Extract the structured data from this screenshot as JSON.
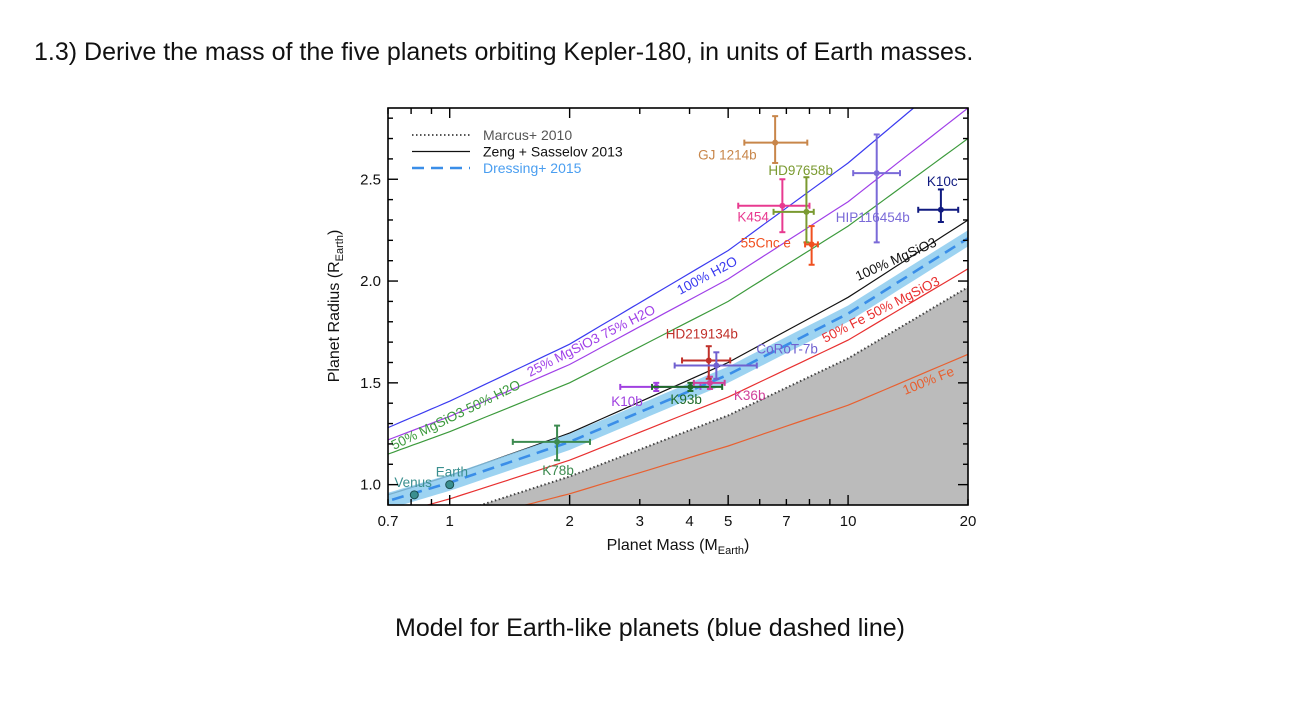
{
  "slide": {
    "title": "1.3) Derive the mass of the five planets orbiting Kepler-180, in units of Earth masses.",
    "caption": "Model for Earth-like planets (blue dashed line)"
  },
  "chart_data": {
    "type": "scatter",
    "xlabel": "Planet Mass (M",
    "xlabel_sub": "Earth",
    "ylabel": "Planet Radius (R",
    "ylabel_sub": "Earth",
    "xscale": "log",
    "xlim": [
      0.7,
      20
    ],
    "ylim": [
      0.9,
      2.85
    ],
    "xticks": [
      "0.7",
      "1",
      "2",
      "3",
      "4",
      "5",
      "7",
      "10",
      "20"
    ],
    "yticks": [
      "1.0",
      "1.5",
      "2.0",
      "2.5"
    ],
    "grid": false,
    "legend_position": "top-left",
    "legend": [
      {
        "label": "Marcus+ 2010",
        "style": "dotted",
        "color": "#555555"
      },
      {
        "label": "Zeng + Sasselov 2013",
        "style": "solid",
        "color": "#111111"
      },
      {
        "label": "Dressing+ 2015",
        "style": "dashed",
        "color": "#3a8ee8"
      }
    ],
    "curves": [
      {
        "label": "100% H2O",
        "color": "#3b3bf0",
        "points": [
          [
            0.7,
            1.28
          ],
          [
            1,
            1.41
          ],
          [
            2,
            1.69
          ],
          [
            5,
            2.15
          ],
          [
            10,
            2.58
          ],
          [
            14.6,
            2.85
          ]
        ]
      },
      {
        "label": "25% MgSiO3 75% H2O",
        "color": "#a040e8",
        "points": [
          [
            0.7,
            1.22
          ],
          [
            1,
            1.335
          ],
          [
            2,
            1.59
          ],
          [
            5,
            2.01
          ],
          [
            10,
            2.39
          ],
          [
            20,
            2.85
          ]
        ]
      },
      {
        "label": "50% MgSiO3 50% H2O",
        "color": "#3c9a3c",
        "points": [
          [
            0.7,
            1.15
          ],
          [
            1,
            1.26
          ],
          [
            2,
            1.5
          ],
          [
            5,
            1.9
          ],
          [
            10,
            2.27
          ],
          [
            20,
            2.7
          ]
        ]
      },
      {
        "label": "100% MgSiO3",
        "color": "#111111",
        "points": [
          [
            0.7,
            0.95
          ],
          [
            1,
            1.044
          ],
          [
            2,
            1.253
          ],
          [
            5,
            1.6
          ],
          [
            10,
            1.92
          ],
          [
            20,
            2.3
          ]
        ]
      },
      {
        "label": "",
        "color": "#3a8ee8",
        "dashed": true,
        "band": 0.04,
        "points": [
          [
            0.7,
            0.92
          ],
          [
            1,
            1.01
          ],
          [
            2,
            1.21
          ],
          [
            5,
            1.54
          ],
          [
            10,
            1.84
          ],
          [
            20,
            2.21
          ]
        ]
      },
      {
        "label": "50% Fe 50% MgSiO3",
        "color": "#e83030",
        "points": [
          [
            0.88,
            0.9
          ],
          [
            1,
            0.93
          ],
          [
            2,
            1.12
          ],
          [
            5,
            1.43
          ],
          [
            10,
            1.71
          ],
          [
            20,
            2.06
          ]
        ]
      },
      {
        "label": "",
        "color": "#444444",
        "dotted": true,
        "fill_below": "#bbbbbb",
        "points": [
          [
            1.2,
            0.9
          ],
          [
            2,
            1.04
          ],
          [
            5,
            1.34
          ],
          [
            10,
            1.62
          ],
          [
            20,
            1.97
          ]
        ]
      },
      {
        "label": "100% Fe",
        "color": "#e86030",
        "points": [
          [
            1.55,
            0.9
          ],
          [
            2,
            0.955
          ],
          [
            5,
            1.19
          ],
          [
            10,
            1.39
          ],
          [
            20,
            1.64
          ]
        ]
      }
    ],
    "points": [
      {
        "name": "Venus",
        "mass": 0.815,
        "radius": 0.95,
        "color": "#3a8f8f"
      },
      {
        "name": "Earth",
        "mass": 1.0,
        "radius": 1.0,
        "color": "#3a8f8f"
      },
      {
        "name": "K78b",
        "mass": 1.86,
        "mass_err": [
          1.44,
          2.25
        ],
        "radius": 1.21,
        "radius_err": [
          1.12,
          1.29
        ],
        "color": "#3c8a4f"
      },
      {
        "name": "K10b",
        "mass": 3.3,
        "mass_err": [
          2.68,
          4.26
        ],
        "radius": 1.48,
        "radius_err": [
          1.46,
          1.5
        ],
        "color": "#a040e0"
      },
      {
        "name": "K93b",
        "mass": 4.02,
        "mass_err": [
          3.22,
          4.83
        ],
        "radius": 1.48,
        "radius_err": [
          1.46,
          1.5
        ],
        "color": "#1f6b2a"
      },
      {
        "name": "K36b",
        "mass": 4.5,
        "mass_err": [
          4.1,
          4.9
        ],
        "radius": 1.5,
        "radius_err": [
          1.47,
          1.53
        ],
        "color": "#d0409a"
      },
      {
        "name": "HD219134b",
        "mass": 4.47,
        "mass_err": [
          3.83,
          5.06
        ],
        "radius": 1.61,
        "radius_err": [
          1.52,
          1.68
        ],
        "color": "#c0302a"
      },
      {
        "name": "CoRoT-7b",
        "mass": 4.67,
        "mass_err": [
          3.67,
          5.9
        ],
        "radius": 1.585,
        "radius_err": [
          1.52,
          1.65
        ],
        "color": "#7060d0"
      },
      {
        "name": "GJ 1214b",
        "mass": 6.56,
        "mass_err": [
          5.49,
          7.9
        ],
        "radius": 2.68,
        "radius_err": [
          2.58,
          2.81
        ],
        "color": "#c8864a"
      },
      {
        "name": "K454",
        "mass": 6.84,
        "mass_err": [
          5.3,
          8.0
        ],
        "radius": 2.37,
        "radius_err": [
          2.24,
          2.5
        ],
        "color": "#e83a90"
      },
      {
        "name": "HD97658b",
        "mass": 7.86,
        "mass_err": [
          6.5,
          8.2
        ],
        "radius": 2.34,
        "radius_err": [
          2.19,
          2.51
        ],
        "color": "#7a9a30"
      },
      {
        "name": "55Cnc e",
        "mass": 8.1,
        "mass_err": [
          7.8,
          8.4
        ],
        "radius": 2.18,
        "radius_err": [
          2.08,
          2.27
        ],
        "color": "#f05020"
      },
      {
        "name": "HIP116454b",
        "mass": 11.8,
        "mass_err": [
          10.3,
          13.5
        ],
        "radius": 2.53,
        "radius_err": [
          2.19,
          2.72
        ],
        "color": "#7a6ad8"
      },
      {
        "name": "K10c",
        "mass": 17.1,
        "mass_err": [
          15.0,
          18.9
        ],
        "radius": 2.35,
        "radius_err": [
          2.29,
          2.45
        ],
        "color": "#101a80"
      }
    ]
  }
}
